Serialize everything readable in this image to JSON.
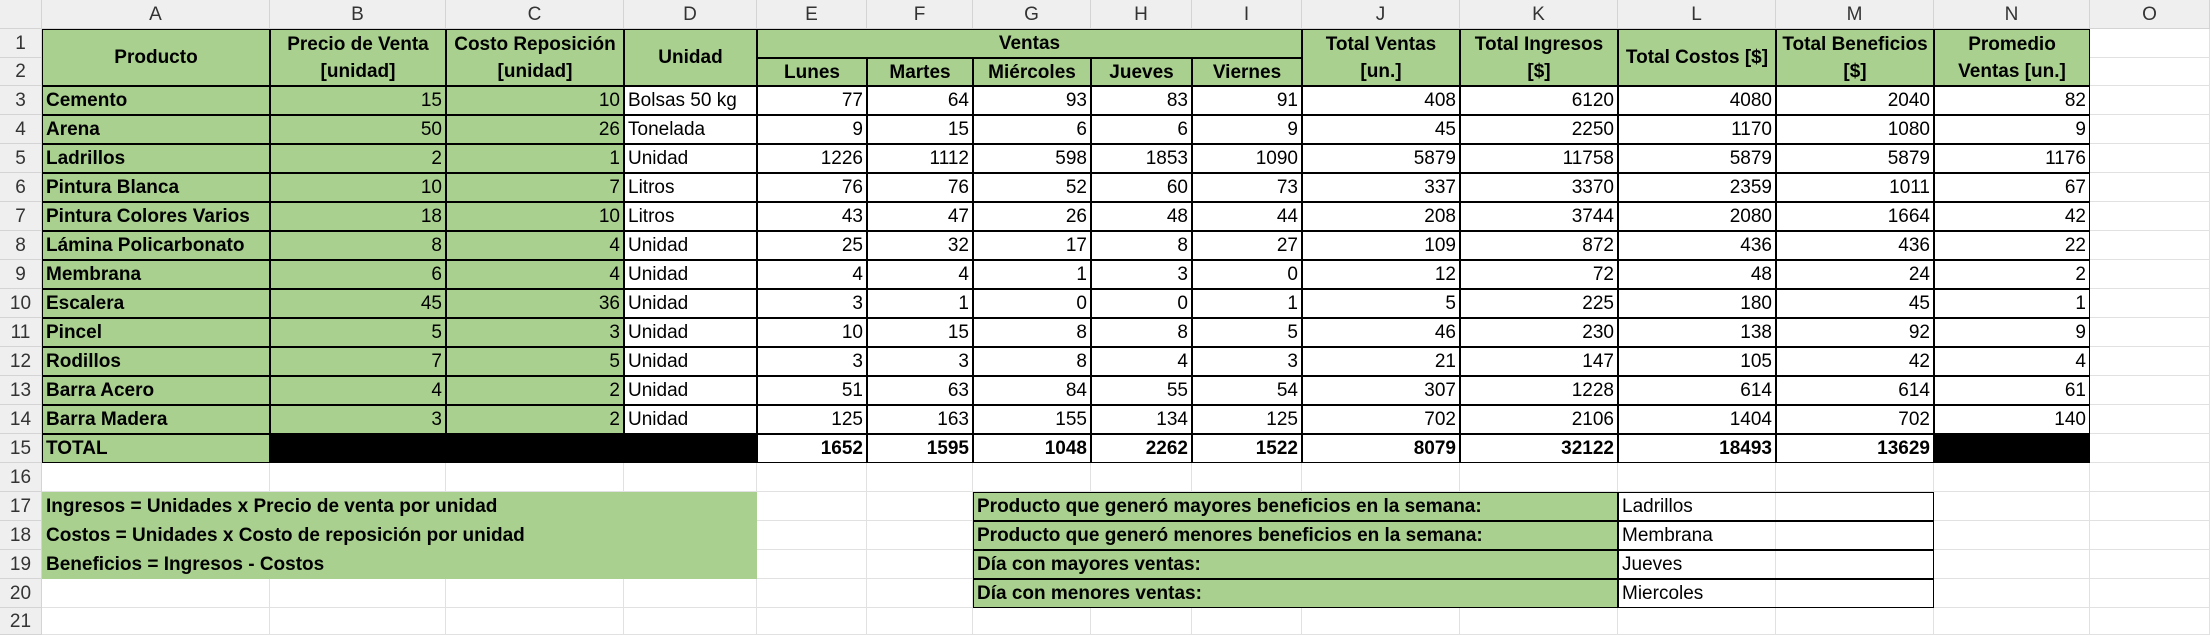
{
  "columns": [
    "A",
    "B",
    "C",
    "D",
    "E",
    "F",
    "G",
    "H",
    "I",
    "J",
    "K",
    "L",
    "M",
    "N",
    "O"
  ],
  "rows": [
    "1",
    "2",
    "3",
    "4",
    "5",
    "6",
    "7",
    "8",
    "9",
    "10",
    "11",
    "12",
    "13",
    "14",
    "15",
    "16",
    "17",
    "18",
    "19",
    "20",
    "21"
  ],
  "header": {
    "producto": "Producto",
    "precio": [
      "Precio de Venta",
      "[unidad]"
    ],
    "costo": [
      "Costo Reposición",
      "[unidad]"
    ],
    "unidad": "Unidad",
    "ventas": "Ventas",
    "days": [
      "Lunes",
      "Martes",
      "Miércoles",
      "Jueves",
      "Viernes"
    ],
    "total_ventas": [
      "Total Ventas",
      "[un.]"
    ],
    "total_ingresos": [
      "Total Ingresos",
      "[$]"
    ],
    "total_costos": "Total Costos [$]",
    "total_beneficios": [
      "Total Beneficios",
      "[$]"
    ],
    "promedio": [
      "Promedio",
      "Ventas [un.]"
    ]
  },
  "products": [
    {
      "name": "Cemento",
      "precio": "15",
      "costo": "10",
      "unidad": "Bolsas 50 kg",
      "lun": "77",
      "mar": "64",
      "mie": "93",
      "jue": "83",
      "vie": "91",
      "tv": "408",
      "ti": "6120",
      "tc": "4080",
      "tb": "2040",
      "pr": "82"
    },
    {
      "name": "Arena",
      "precio": "50",
      "costo": "26",
      "unidad": "Tonelada",
      "lun": "9",
      "mar": "15",
      "mie": "6",
      "jue": "6",
      "vie": "9",
      "tv": "45",
      "ti": "2250",
      "tc": "1170",
      "tb": "1080",
      "pr": "9"
    },
    {
      "name": "Ladrillos",
      "precio": "2",
      "costo": "1",
      "unidad": "Unidad",
      "lun": "1226",
      "mar": "1112",
      "mie": "598",
      "jue": "1853",
      "vie": "1090",
      "tv": "5879",
      "ti": "11758",
      "tc": "5879",
      "tb": "5879",
      "pr": "1176"
    },
    {
      "name": "Pintura Blanca",
      "precio": "10",
      "costo": "7",
      "unidad": "Litros",
      "lun": "76",
      "mar": "76",
      "mie": "52",
      "jue": "60",
      "vie": "73",
      "tv": "337",
      "ti": "3370",
      "tc": "2359",
      "tb": "1011",
      "pr": "67"
    },
    {
      "name": "Pintura Colores Varios",
      "precio": "18",
      "costo": "10",
      "unidad": "Litros",
      "lun": "43",
      "mar": "47",
      "mie": "26",
      "jue": "48",
      "vie": "44",
      "tv": "208",
      "ti": "3744",
      "tc": "2080",
      "tb": "1664",
      "pr": "42"
    },
    {
      "name": "Lámina Policarbonato",
      "precio": "8",
      "costo": "4",
      "unidad": "Unidad",
      "lun": "25",
      "mar": "32",
      "mie": "17",
      "jue": "8",
      "vie": "27",
      "tv": "109",
      "ti": "872",
      "tc": "436",
      "tb": "436",
      "pr": "22"
    },
    {
      "name": "Membrana",
      "precio": "6",
      "costo": "4",
      "unidad": "Unidad",
      "lun": "4",
      "mar": "4",
      "mie": "1",
      "jue": "3",
      "vie": "0",
      "tv": "12",
      "ti": "72",
      "tc": "48",
      "tb": "24",
      "pr": "2"
    },
    {
      "name": "Escalera",
      "precio": "45",
      "costo": "36",
      "unidad": "Unidad",
      "lun": "3",
      "mar": "1",
      "mie": "0",
      "jue": "0",
      "vie": "1",
      "tv": "5",
      "ti": "225",
      "tc": "180",
      "tb": "45",
      "pr": "1"
    },
    {
      "name": "Pincel",
      "precio": "5",
      "costo": "3",
      "unidad": "Unidad",
      "lun": "10",
      "mar": "15",
      "mie": "8",
      "jue": "8",
      "vie": "5",
      "tv": "46",
      "ti": "230",
      "tc": "138",
      "tb": "92",
      "pr": "9"
    },
    {
      "name": "Rodillos",
      "precio": "7",
      "costo": "5",
      "unidad": "Unidad",
      "lun": "3",
      "mar": "3",
      "mie": "8",
      "jue": "4",
      "vie": "3",
      "tv": "21",
      "ti": "147",
      "tc": "105",
      "tb": "42",
      "pr": "4"
    },
    {
      "name": "Barra Acero",
      "precio": "4",
      "costo": "2",
      "unidad": "Unidad",
      "lun": "51",
      "mar": "63",
      "mie": "84",
      "jue": "55",
      "vie": "54",
      "tv": "307",
      "ti": "1228",
      "tc": "614",
      "tb": "614",
      "pr": "61"
    },
    {
      "name": "Barra Madera",
      "precio": "3",
      "costo": "2",
      "unidad": "Unidad",
      "lun": "125",
      "mar": "163",
      "mie": "155",
      "jue": "134",
      "vie": "125",
      "tv": "702",
      "ti": "2106",
      "tc": "1404",
      "tb": "702",
      "pr": "140"
    }
  ],
  "total": {
    "label": "TOTAL",
    "lun": "1652",
    "mar": "1595",
    "mie": "1048",
    "jue": "2262",
    "vie": "1522",
    "tv": "8079",
    "ti": "32122",
    "tc": "18493",
    "tb": "13629"
  },
  "notes": [
    "Ingresos = Unidades x Precio de venta por unidad",
    "Costos = Unidades x Costo de reposición por unidad",
    "Beneficios = Ingresos - Costos"
  ],
  "summary": [
    {
      "label": "Producto que generó mayores beneficios en la semana:",
      "value": "Ladrillos"
    },
    {
      "label": "Producto que generó menores beneficios en la semana:",
      "value": "Membrana"
    },
    {
      "label": "Día con mayores ventas:",
      "value": "Jueves"
    },
    {
      "label": "Día con menores ventas:",
      "value": "Miercoles"
    }
  ],
  "colors": {
    "green": "#a9d08e",
    "black": "#000000",
    "header_gray": "#efefef",
    "grid": "#e1e1e1"
  }
}
